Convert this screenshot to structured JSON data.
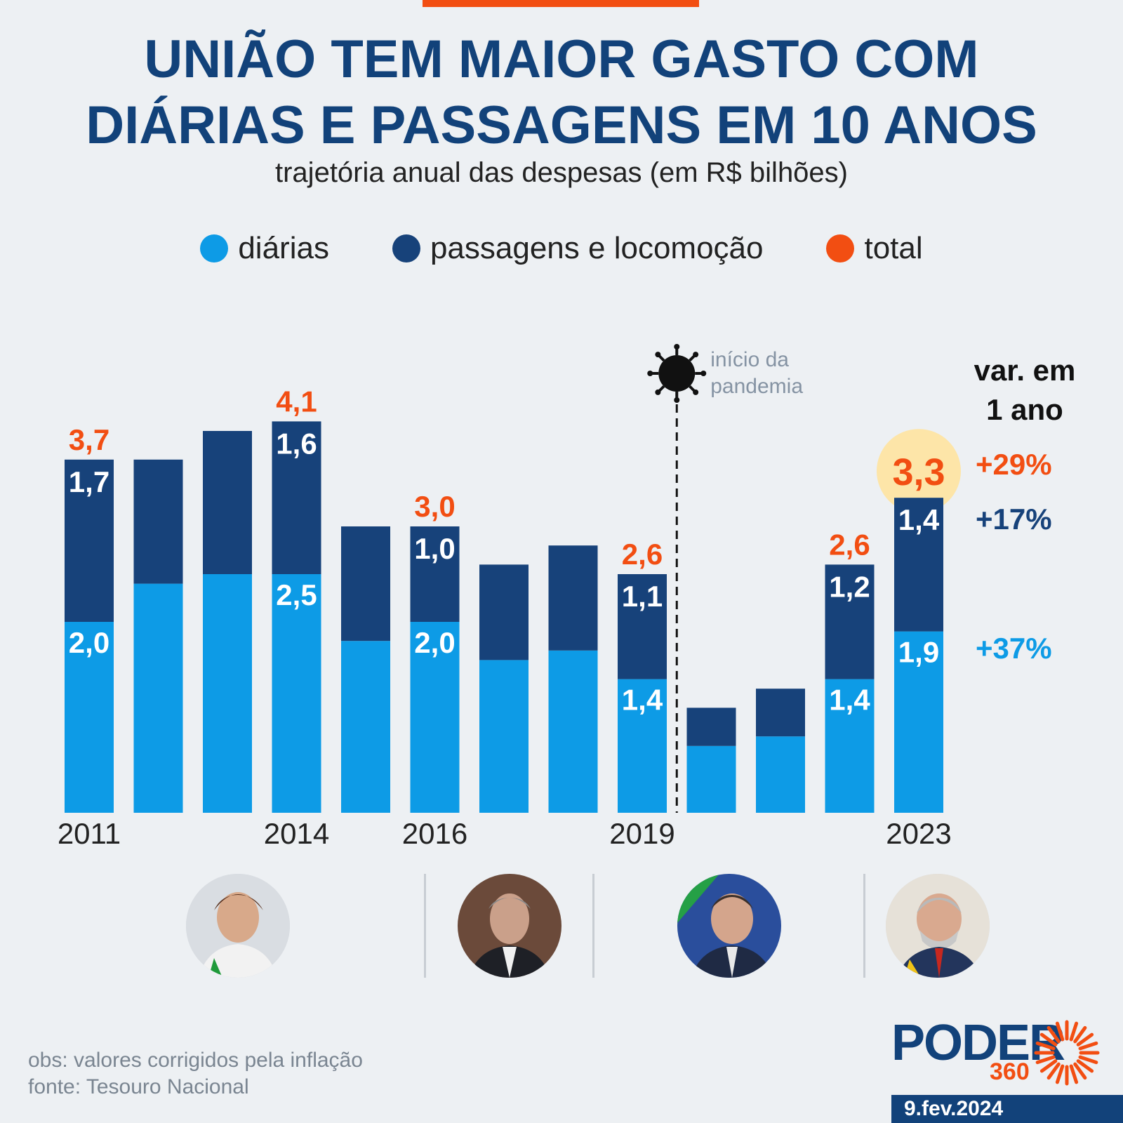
{
  "header": {
    "title_line1": "UNIÃO TEM MAIOR GASTO COM",
    "title_line2": "DIÁRIAS E PASSAGENS EM 10 ANOS",
    "subtitle": "trajetória anual das despesas (em R$ bilhões)"
  },
  "legend": {
    "items": [
      {
        "label": "diárias",
        "color": "#0d9be6"
      },
      {
        "label": "passagens e locomoção",
        "color": "#17427a"
      },
      {
        "label": "total",
        "color": "#f24e12"
      }
    ]
  },
  "chart_data": {
    "type": "bar",
    "stacked": true,
    "title": "UNIÃO TEM MAIOR GASTO COM DIÁRIAS E PASSAGENS EM 10 ANOS",
    "subtitle": "trajetória anual das despesas (em R$ bilhões)",
    "categories": [
      "2011",
      "2012",
      "2013",
      "2014",
      "2015",
      "2016",
      "2017",
      "2018",
      "2019",
      "2020",
      "2021",
      "2022",
      "2023"
    ],
    "tick_labels": [
      "2011",
      "",
      "",
      "2014",
      "",
      "2016",
      "",
      "",
      "2019",
      "",
      "",
      "",
      "2023"
    ],
    "series": [
      {
        "name": "diárias",
        "color": "#0d9be6",
        "values": [
          2.0,
          2.4,
          2.5,
          2.5,
          1.8,
          2.0,
          1.6,
          1.7,
          1.4,
          0.7,
          0.8,
          1.4,
          1.9
        ],
        "labels": [
          "2,0",
          "",
          "",
          "2,5",
          "",
          "2,0",
          "",
          "",
          "1,4",
          "",
          "",
          "1,4",
          "1,9"
        ]
      },
      {
        "name": "passagens e locomoção",
        "color": "#17427a",
        "values": [
          1.7,
          1.3,
          1.5,
          1.6,
          1.2,
          1.0,
          1.0,
          1.1,
          1.1,
          0.4,
          0.5,
          1.2,
          1.4
        ],
        "labels": [
          "1,7",
          "",
          "",
          "1,6",
          "",
          "1,0",
          "",
          "",
          "1,1",
          "",
          "",
          "1,2",
          "1,4"
        ]
      }
    ],
    "totals": [
      3.7,
      3.7,
      4.0,
      4.1,
      3.0,
      3.0,
      2.6,
      2.8,
      2.6,
      1.1,
      1.3,
      2.6,
      3.3
    ],
    "total_labels": [
      "3,7",
      "",
      "",
      "4,1",
      "",
      "3,0",
      "",
      "",
      "2,6",
      "",
      "",
      "2,6",
      "3,3"
    ],
    "ylim": [
      0,
      4.4
    ],
    "xlabel": "",
    "ylabel": "",
    "annotation": {
      "text_line1": "início da",
      "text_line2": "pandemia",
      "between": [
        "2019",
        "2020"
      ]
    },
    "highlight_index": 12
  },
  "variation": {
    "header_line1": "var. em",
    "header_line2": "1 ano",
    "total": "+29%",
    "passagens": "+17%",
    "diarias": "+37%"
  },
  "colors": {
    "orange": "#f24e12",
    "navy": "#17427a",
    "blue": "#0d9be6",
    "highlight": "#fde5a8"
  },
  "footer": {
    "obs": "obs: valores corrigidos pela inflação",
    "fonte": "fonte: Tesouro Nacional",
    "brand": "PODER",
    "brand_num": "360",
    "date": "9.fev.2024"
  }
}
